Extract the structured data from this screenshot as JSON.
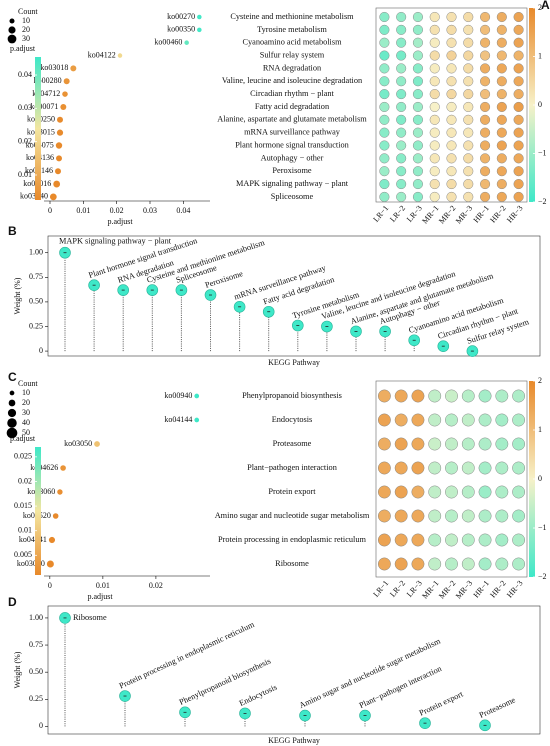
{
  "chart_data": [
    {
      "type": "scatter",
      "panel": "A",
      "x_label": "p.adjust",
      "labels": [
        "ko00270",
        "ko00350",
        "ko00460",
        "ko04122",
        "ko03018",
        "ko00280",
        "ko04712",
        "ko00071",
        "ko00250",
        "ko03015",
        "ko04075",
        "ko04136",
        "ko04146",
        "ko04016",
        "ko03040"
      ],
      "categories": [
        "Cysteine and methionine metabolism",
        "Tyrosine metabolism",
        "Cyanoamino acid metabolism",
        "Sulfur relay system",
        "RNA degradation",
        "Valine, leucine and isoleucine degradation",
        "Circadian rhythm − plant",
        "Fatty acid degradation",
        "Alanine, aspartate and glutamate metabolism",
        "mRNA surveillance pathway",
        "Plant hormone signal transduction",
        "Autophagy − other",
        "Peroxisome",
        "MAPK signaling pathway − plant",
        "Spliceosome"
      ],
      "values": [
        0.0448,
        0.0448,
        0.041,
        0.021,
        0.007,
        0.005,
        0.0045,
        0.004,
        0.003,
        0.003,
        0.0027,
        0.0027,
        0.0024,
        0.002,
        0.001
      ],
      "sizes": [
        8,
        8,
        8,
        8,
        14,
        14,
        12,
        14,
        14,
        15,
        16,
        14,
        14,
        18,
        18
      ],
      "xlim": [
        -0.0018,
        0.048
      ],
      "xticks": [
        0,
        0.01,
        0.02,
        0.03,
        0.04
      ],
      "size_legend": {
        "title": "Count",
        "values": [
          10,
          20,
          30
        ]
      },
      "colorbar": {
        "title": "p.adjust",
        "lim": [
          0.0025,
          0.0454
        ],
        "ticks": [
          0.01,
          0.02,
          0.03,
          0.04
        ],
        "colors": [
          "#e8892a",
          "#f3e6a0",
          "#3ee8c8"
        ]
      }
    },
    {
      "type": "heatmap",
      "columns": [
        "LR−1",
        "LR−2",
        "LR−3",
        "MR−1",
        "MR−2",
        "MR−3",
        "HR−1",
        "HR−2",
        "HR−3"
      ],
      "values": [
        [
          -1.2,
          -1.1,
          -1.0,
          0.2,
          0.3,
          0.4,
          1.1,
          1.3,
          1.5
        ],
        [
          -1.3,
          -1.2,
          -1.1,
          0.3,
          0.4,
          0.3,
          1.0,
          1.2,
          1.4
        ],
        [
          -1.0,
          -1.2,
          -0.9,
          0.1,
          0.3,
          0.4,
          1.2,
          1.3,
          1.5
        ],
        [
          -1.5,
          -1.4,
          -1.0,
          0.4,
          0.6,
          0.5,
          0.9,
          1.1,
          1.2
        ],
        [
          -1.1,
          -1.0,
          -1.2,
          0.1,
          0.2,
          0.4,
          1.3,
          1.4,
          1.5
        ],
        [
          -1.2,
          -1.1,
          -1.3,
          0.2,
          0.3,
          0.3,
          1.2,
          1.3,
          1.4
        ],
        [
          -1.4,
          -1.3,
          -1.2,
          0.4,
          0.5,
          0.5,
          1.0,
          1.2,
          1.3
        ],
        [
          -1.0,
          -1.1,
          -1.0,
          0.0,
          0.1,
          0.2,
          1.3,
          1.5,
          1.6
        ],
        [
          -1.1,
          -1.3,
          -1.2,
          0.2,
          0.2,
          0.3,
          1.3,
          1.4,
          1.4
        ],
        [
          -1.2,
          -1.1,
          -1.0,
          0.1,
          0.2,
          0.2,
          1.3,
          1.4,
          1.5
        ],
        [
          -1.2,
          -1.0,
          -1.1,
          0.1,
          0.2,
          0.3,
          1.3,
          1.5,
          1.5
        ],
        [
          -1.1,
          -1.2,
          -1.0,
          0.2,
          0.3,
          0.4,
          1.2,
          1.3,
          1.4
        ],
        [
          -1.0,
          -1.2,
          -1.1,
          0.1,
          0.2,
          0.3,
          1.3,
          1.4,
          1.5
        ],
        [
          -1.3,
          -1.2,
          -1.1,
          0.3,
          0.4,
          0.4,
          1.1,
          1.3,
          1.5
        ],
        [
          -1.1,
          -1.0,
          -1.2,
          0.1,
          0.3,
          0.3,
          1.3,
          1.4,
          1.5
        ]
      ],
      "colorbar": {
        "lim": [
          -2,
          2
        ],
        "ticks": [
          {
            "value": -2,
            "label": "−2"
          },
          {
            "value": -1,
            "label": "−1"
          },
          0,
          1,
          2
        ],
        "colors": [
          "#3ee8c8",
          "#f7f1c8",
          "#e8892a"
        ]
      }
    },
    {
      "type": "lollipop",
      "panel": "B",
      "y_label": "Weight (%)",
      "x_label": "KEGG Pathway",
      "color": "#3ee8c8",
      "categories": [
        "MAPK signaling pathway − plant",
        "Plant hormone signal transduction",
        "RNA degradation",
        "Cysteine and methionine metabolism",
        "Spliceosome",
        "Peroxisome",
        "mRNA surveillance pathway",
        "Fatty acid degradation",
        "Tyrosine metabolism",
        "Valine, leucine and isoleucine degradation",
        "Alanine, aspartate and glutamate metabolism",
        "Autophagy − other",
        "Cyanoamino acid metabolism",
        "Circadian rhythm − plant",
        "Sulfur relay system"
      ],
      "values": [
        1.0,
        0.67,
        0.62,
        0.62,
        0.62,
        0.57,
        0.45,
        0.4,
        0.26,
        0.25,
        0.2,
        0.2,
        0.11,
        0.05,
        0.0
      ],
      "ylim": [
        -0.05,
        1.17
      ],
      "yticks": [
        0,
        0.25,
        {
          "value": 0.5,
          "label": "0.50"
        },
        0.75,
        {
          "value": 1,
          "label": "1.00"
        }
      ]
    },
    {
      "type": "scatter",
      "panel": "C",
      "x_label": "p.adjust",
      "labels": [
        "ko00940",
        "ko04144",
        "ko03050",
        "ko04626",
        "ko03060",
        "ko00520",
        "ko04141",
        "ko03010"
      ],
      "categories": [
        "Phenylpropanoid biosynthesis",
        "Endocytosis",
        "Proteasome",
        "Plant−pathogen interaction",
        "Protein export",
        "Amino sugar and nucleotide sugar metabolism",
        "Protein processing in endoplasmic reticulum",
        "Ribosome"
      ],
      "values": [
        0.0277,
        0.0277,
        0.0089,
        0.0025,
        0.0019,
        0.0011,
        0.0004,
        0.0001
      ],
      "sizes": [
        10,
        10,
        15,
        14,
        13,
        14,
        17,
        22
      ],
      "xlim": [
        -0.0011,
        0.0302
      ],
      "xticks": [
        0,
        0.01,
        0.02
      ],
      "size_legend": {
        "title": "Count",
        "values": [
          10,
          20,
          30,
          40,
          50
        ]
      },
      "colorbar": {
        "title": "p.adjust",
        "lim": [
          0.001,
          0.027
        ],
        "ticks": [
          0.005,
          0.01,
          0.015,
          0.02,
          0.025
        ],
        "colors": [
          "#e8892a",
          "#f3e6a0",
          "#3ee8c8"
        ]
      }
    },
    {
      "type": "heatmap",
      "columns": [
        "LR−1",
        "LR−2",
        "LR−3",
        "MR−1",
        "MR−2",
        "MR−3",
        "HR−1",
        "HR−2",
        "HR−3"
      ],
      "values": [
        [
          1.3,
          1.4,
          1.5,
          -0.6,
          -0.5,
          -0.7,
          -0.9,
          -0.8,
          -0.8
        ],
        [
          1.5,
          1.3,
          1.4,
          -0.6,
          -0.7,
          -0.6,
          -0.8,
          -0.9,
          -0.8
        ],
        [
          1.3,
          1.5,
          1.4,
          -0.5,
          -0.6,
          -0.7,
          -0.8,
          -0.9,
          -0.9
        ],
        [
          1.4,
          1.4,
          1.5,
          -0.6,
          -0.7,
          -0.6,
          -0.9,
          -0.8,
          -0.8
        ],
        [
          1.4,
          1.5,
          1.3,
          -0.6,
          -0.6,
          -0.7,
          -1.0,
          -0.8,
          -0.8
        ],
        [
          1.3,
          1.4,
          1.4,
          -0.6,
          -0.7,
          -0.6,
          -0.8,
          -0.8,
          -0.9
        ],
        [
          1.5,
          1.4,
          1.4,
          -0.7,
          -0.6,
          -0.7,
          -0.8,
          -0.9,
          -0.8
        ],
        [
          1.4,
          1.5,
          1.4,
          -0.6,
          -0.7,
          -0.6,
          -0.9,
          -0.8,
          -0.8
        ]
      ],
      "colorbar": {
        "lim": [
          -2,
          2
        ],
        "ticks": [
          {
            "value": -2,
            "label": "−2"
          },
          {
            "value": -1,
            "label": "−1"
          },
          0,
          1,
          2
        ],
        "colors": [
          "#3ee8c8",
          "#f7f1c8",
          "#e8892a"
        ]
      }
    },
    {
      "type": "lollipop",
      "panel": "D",
      "y_label": "Weight (%)",
      "x_label": "KEGG Pathway",
      "color": "#3ee8c8",
      "categories": [
        "Ribosome",
        "Protein processing in endoplasmic reticulum",
        "Phenylpropanoid biosynthesis",
        "Endocytosis",
        "Amino sugar and nucleotide sugar metabolism",
        "Plant−pathogen interaction",
        "Protein export",
        "Proteasome"
      ],
      "values": [
        1.0,
        0.28,
        0.13,
        0.12,
        0.1,
        0.1,
        0.03,
        0.01
      ],
      "ylim": [
        -0.07,
        1.11
      ],
      "yticks": [
        0,
        0.25,
        {
          "value": 0.5,
          "label": "0.50"
        },
        0.75,
        {
          "value": 1,
          "label": "1.00"
        }
      ]
    }
  ]
}
